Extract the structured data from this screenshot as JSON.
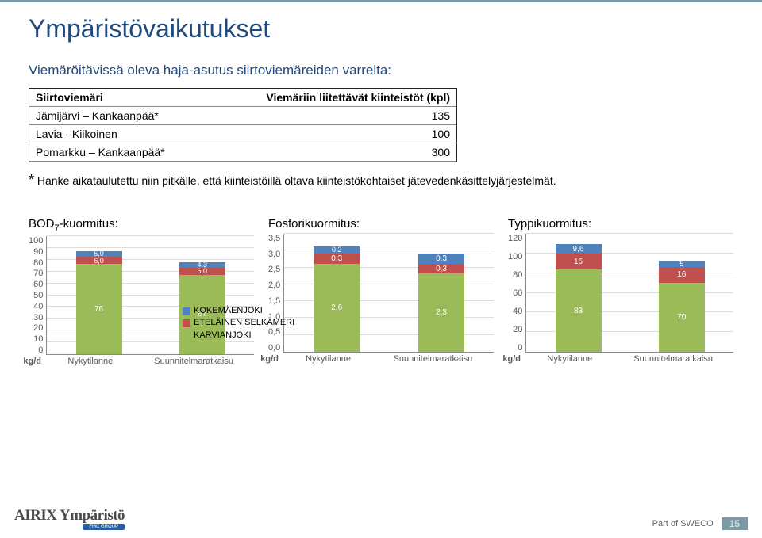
{
  "page": {
    "title": "Ympäristövaikutukset",
    "subtitle": "Viemäröitävissä oleva haja-asutus siirtoviemäreiden varrelta:"
  },
  "table": {
    "head_col1": "Siirtoviemäri",
    "head_col2": "Viemäriin liitettävät kiinteistöt (kpl)",
    "rows": [
      {
        "label": "Jämijärvi – Kankaanpää*",
        "value": "135"
      },
      {
        "label": "Lavia - Kiikoinen",
        "value": "100"
      },
      {
        "label": "Pomarkku – Kankaanpää*",
        "value": "300"
      }
    ]
  },
  "footnote": {
    "star": "*",
    "text": " Hanke aikataulutettu niin pitkälle, että kiinteistöillä oltava kiinteistökohtaiset jätevedenkäsittelyjärjestelmät."
  },
  "legend": {
    "items": [
      {
        "label": "KOKEMÄENJOKI",
        "color": "#4f81bd"
      },
      {
        "label": "ETELÄINEN SELKÄMERI",
        "color": "#c0504d"
      },
      {
        "label": "KARVIANJOKI",
        "color": "#9bbb59"
      }
    ]
  },
  "colors": {
    "kokemaen": "#4f81bd",
    "etelainen": "#c0504d",
    "karvian": "#9bbb59"
  },
  "charts": [
    {
      "title_prefix": "BOD",
      "title_sub": "7",
      "title_suffix": "-kuormitus:",
      "unit": "kg/d",
      "ymax": 100,
      "ytick_step": 10,
      "x_labels": [
        "Nykytilanne",
        "Suunnitelmaratkaisu"
      ],
      "bars": [
        {
          "segments": [
            {
              "series": "karvian",
              "value": 76,
              "label": "76"
            },
            {
              "series": "etelainen",
              "value": 6.0,
              "label": "6,0"
            },
            {
              "series": "kokemaen",
              "value": 5.0,
              "label": "5,0"
            }
          ]
        },
        {
          "segments": [
            {
              "series": "karvian",
              "value": 67,
              "label": "67"
            },
            {
              "series": "etelainen",
              "value": 6.0,
              "label": "6,0"
            },
            {
              "series": "kokemaen",
              "value": 4.3,
              "label": "4,3"
            }
          ]
        }
      ]
    },
    {
      "title_prefix": "Fosforikuormitus:",
      "title_sub": "",
      "title_suffix": "",
      "unit": "kg/d",
      "ymax": 3.5,
      "ytick_step": 0.5,
      "x_labels": [
        "Nykytilanne",
        "Suunnitelmaratkaisu"
      ],
      "bars": [
        {
          "segments": [
            {
              "series": "karvian",
              "value": 2.6,
              "label": "2,6"
            },
            {
              "series": "etelainen",
              "value": 0.3,
              "label": "0,3"
            },
            {
              "series": "kokemaen",
              "value": 0.2,
              "label": "0,2"
            }
          ]
        },
        {
          "segments": [
            {
              "series": "karvian",
              "value": 2.3,
              "label": "2,3"
            },
            {
              "series": "etelainen",
              "value": 0.3,
              "label": "0,3"
            },
            {
              "series": "kokemaen",
              "value": 0.3,
              "label": "0,3"
            }
          ]
        }
      ]
    },
    {
      "title_prefix": "Typpikuormitus:",
      "title_sub": "",
      "title_suffix": "",
      "unit": "kg/d",
      "ymax": 120,
      "ytick_step": 20,
      "x_labels": [
        "Nykytilanne",
        "Suunnitelmaratkaisu"
      ],
      "bars": [
        {
          "segments": [
            {
              "series": "karvian",
              "value": 83,
              "label": "83"
            },
            {
              "series": "etelainen",
              "value": 16,
              "label": "16"
            },
            {
              "series": "kokemaen",
              "value": 9.6,
              "label": "9,6"
            }
          ]
        },
        {
          "segments": [
            {
              "series": "karvian",
              "value": 70,
              "label": "70"
            },
            {
              "series": "etelainen",
              "value": 16,
              "label": "16"
            },
            {
              "series": "kokemaen",
              "value": 5,
              "label": "5"
            }
          ]
        }
      ]
    }
  ],
  "footer": {
    "logo_main": "AIRIX Ympäristö",
    "logo_fmc": "FMC GROUP",
    "part_of": "Part of SWECO",
    "page": "15"
  }
}
